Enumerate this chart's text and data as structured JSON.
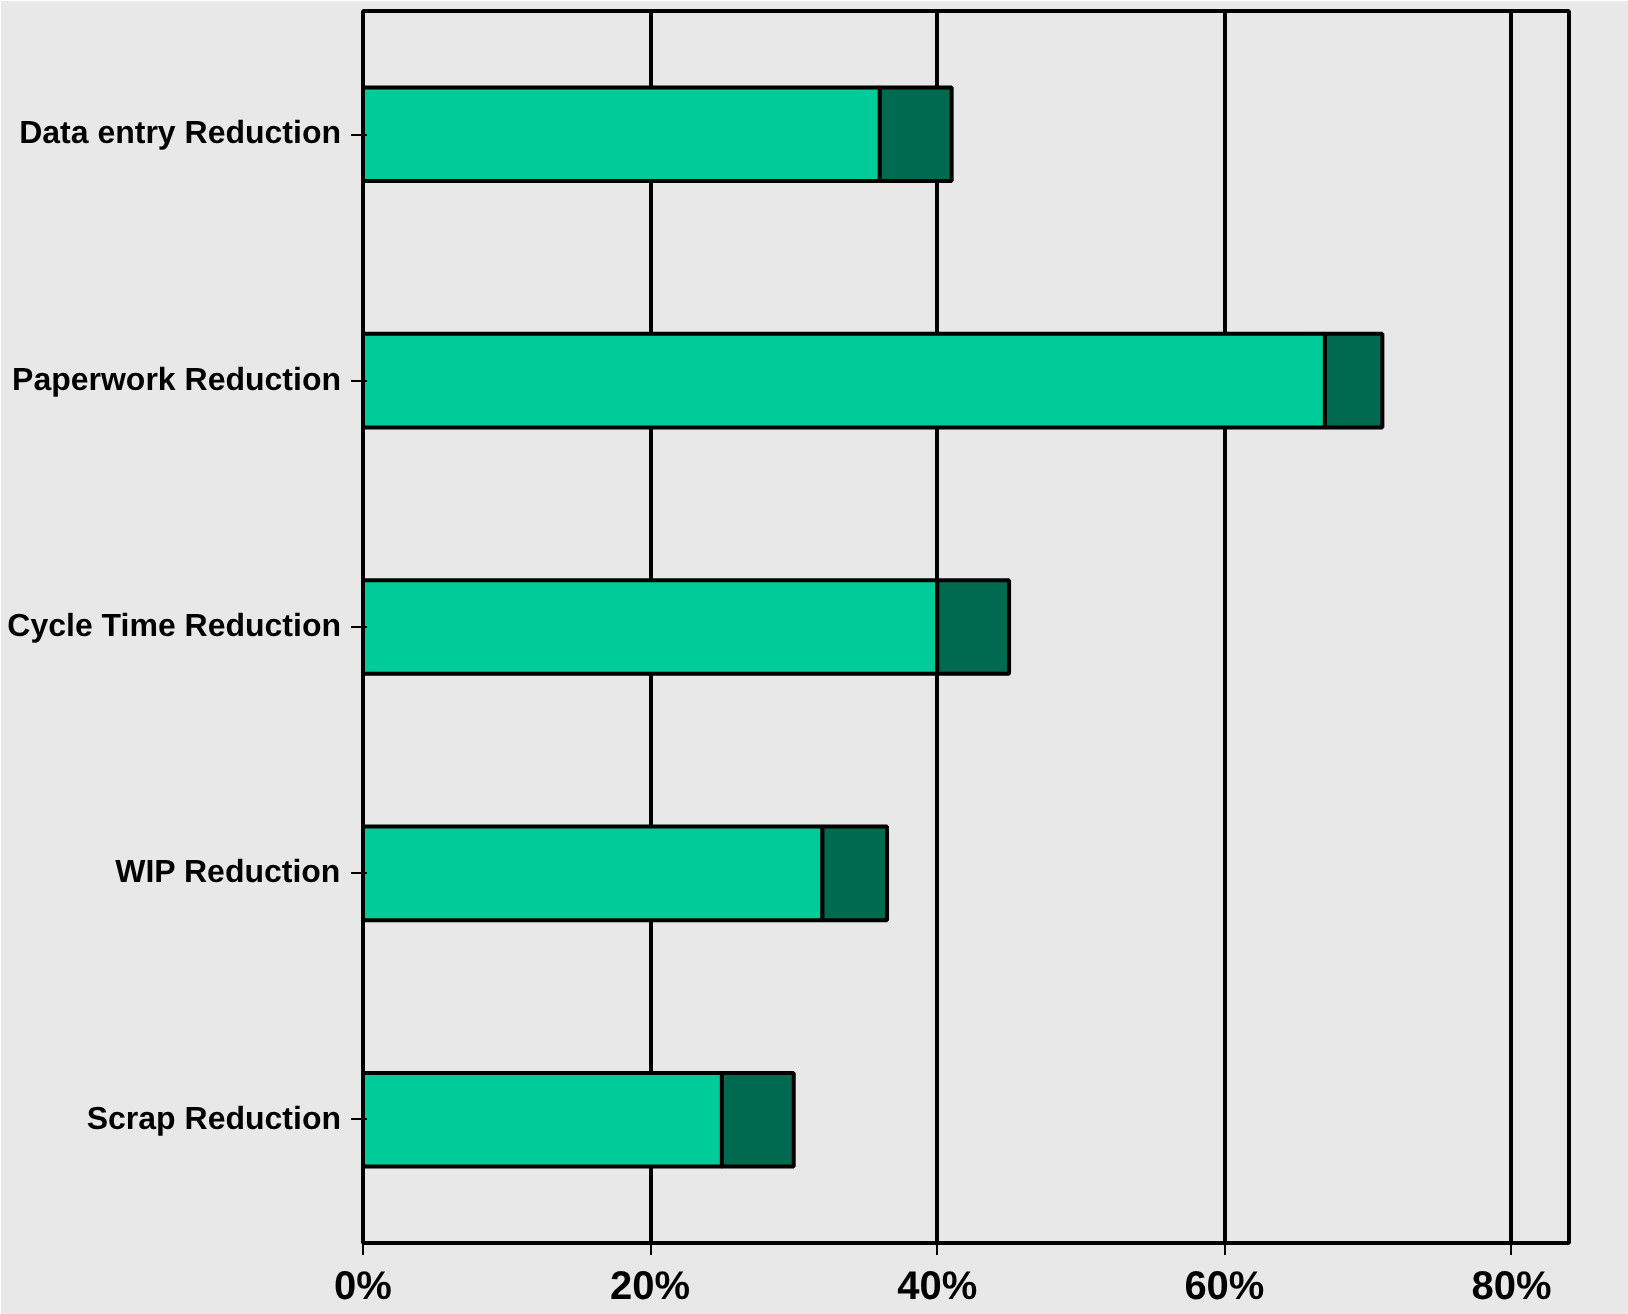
{
  "chart_data": {
    "type": "bar",
    "orientation": "horizontal",
    "stacked": true,
    "categories": [
      "Data entry Reduction",
      "Paperwork Reduction",
      "Cycle Time Reduction",
      "WIP Reduction",
      "Scrap Reduction"
    ],
    "series": [
      {
        "color": "#00cc99",
        "values": [
          36,
          67,
          40,
          32,
          25
        ]
      },
      {
        "color": "#006a50",
        "values": [
          5,
          4,
          5,
          4.5,
          5
        ]
      }
    ],
    "xlim": [
      0,
      84
    ],
    "xticks": [
      {
        "value": 0,
        "label": "0%"
      },
      {
        "value": 20,
        "label": "20%"
      },
      {
        "value": 40,
        "label": "40%"
      },
      {
        "value": 60,
        "label": "60%"
      },
      {
        "value": 80,
        "label": "80%"
      }
    ],
    "grid": "x"
  }
}
